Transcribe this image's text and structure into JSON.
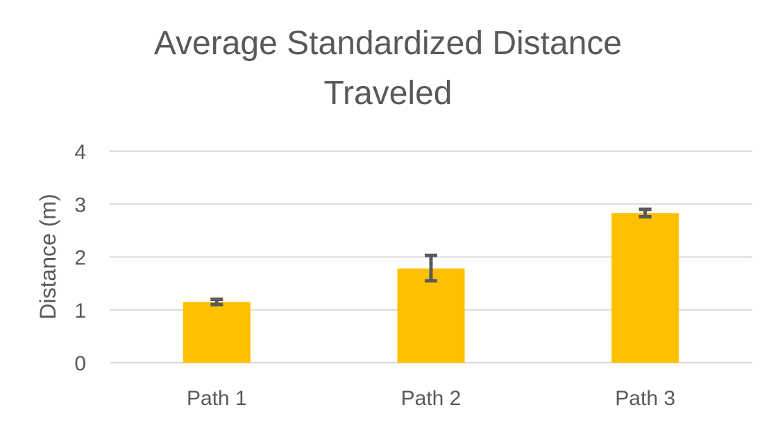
{
  "chart_data": {
    "type": "bar",
    "title_lines": [
      "Average Standardized Distance",
      "Traveled"
    ],
    "xlabel": "",
    "ylabel": "Distance (m)",
    "categories": [
      "Path 1",
      "Path 2",
      "Path 3"
    ],
    "values": [
      1.15,
      1.78,
      2.83
    ],
    "error_plus": [
      0.05,
      0.25,
      0.07
    ],
    "error_minus": [
      0.05,
      0.23,
      0.07
    ],
    "ylim": [
      0,
      4
    ],
    "yticks": [
      "0",
      "1",
      "2",
      "3",
      "4"
    ],
    "grid": true,
    "legend": "none",
    "colors": {
      "bar": "#FFC000",
      "error_bar": "#595959",
      "grid": "#D9D9D9",
      "text": "#595959"
    }
  }
}
